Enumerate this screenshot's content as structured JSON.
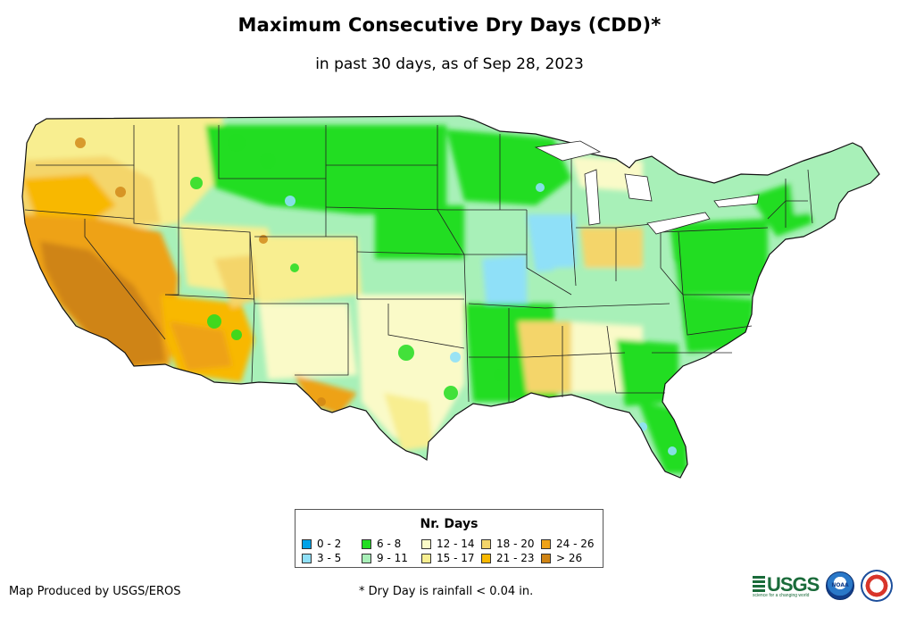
{
  "title": "Maximum Consecutive Dry Days (CDD)*",
  "subtitle": "in past 30 days, as of Sep 28, 2023",
  "legend": {
    "title": "Nr. Days",
    "classes": [
      {
        "label": "0 - 2",
        "color": "#00a2e8"
      },
      {
        "label": "3 - 5",
        "color": "#8fe0f8"
      },
      {
        "label": "6 - 8",
        "color": "#22dd22"
      },
      {
        "label": "9 - 11",
        "color": "#a8f0b8"
      },
      {
        "label": "12 - 14",
        "color": "#fafac8"
      },
      {
        "label": "15 - 17",
        "color": "#f8ee90"
      },
      {
        "label": "18 - 20",
        "color": "#f4d56a"
      },
      {
        "label": "21 - 23",
        "color": "#f8b800"
      },
      {
        "label": "24 - 26",
        "color": "#eea218"
      },
      {
        "label": "> 26",
        "color": "#cf8414"
      }
    ]
  },
  "credit": "Map Produced by USGS/EROS",
  "footnote": "* Dry Day is rainfall < 0.04 in.",
  "logos": {
    "usgs": "USGS",
    "usgs_tagline": "science for a changing world",
    "noaa": "NOAA",
    "nws": "NATIONAL WEATHER SERVICE"
  }
}
